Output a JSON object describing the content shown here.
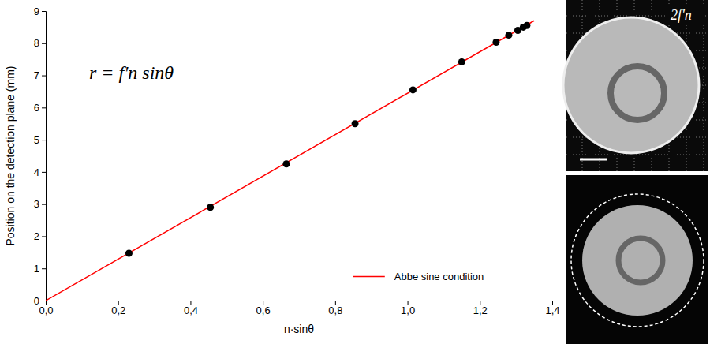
{
  "chart_data": {
    "type": "scatter",
    "x_label": "n·sinθ",
    "y_label": "Position on the detection plane (mm)",
    "annotations": [
      "r = f'n sinθ"
    ],
    "xlim": [
      0,
      1.4
    ],
    "xticks": [
      {
        "value": 0,
        "label": "0,0"
      },
      {
        "value": 0.2,
        "label": "0,2"
      },
      {
        "value": 0.4,
        "label": "0,4"
      },
      {
        "value": 0.6,
        "label": "0,6"
      },
      {
        "value": 0.8,
        "label": "0,8"
      },
      {
        "value": 1.0,
        "label": "1,0"
      },
      {
        "value": 1.2,
        "label": "1,2"
      },
      {
        "value": 1.4,
        "label": "1,4"
      }
    ],
    "ylim": [
      0,
      9
    ],
    "yticks": [
      0,
      1,
      2,
      3,
      4,
      5,
      6,
      7,
      8,
      9
    ],
    "legend": "lower right",
    "series": [
      {
        "type": "scatter",
        "marker": "circle",
        "color": "#000000",
        "x": [
          0.23,
          0.455,
          0.665,
          0.855,
          1.015,
          1.15,
          1.245,
          1.28,
          1.305,
          1.32,
          1.33
        ],
        "values": [
          1.47,
          2.9,
          4.25,
          5.5,
          6.55,
          7.42,
          8.03,
          8.25,
          8.4,
          8.5,
          8.55
        ]
      },
      {
        "name": "Abbe sine condition",
        "type": "line",
        "line_style": "solid",
        "color": "#ff0000",
        "x": [
          0,
          1.35
        ],
        "values": [
          0,
          8.7
        ]
      }
    ]
  },
  "image_labels": [
    "2f'n"
  ]
}
